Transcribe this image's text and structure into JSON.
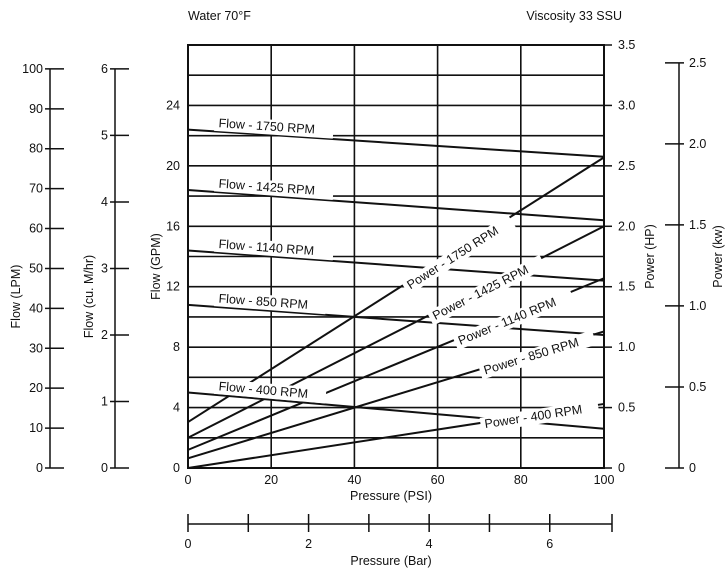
{
  "chart_data": {
    "type": "line",
    "header": {
      "left": "Water 70°F",
      "right": "Viscosity 33 SSU"
    },
    "xaxis_psi": {
      "label": "Pressure (PSI)",
      "range": [
        0,
        100
      ],
      "ticks": [
        "0",
        "20",
        "40",
        "60",
        "80",
        "100"
      ]
    },
    "xaxis_bar": {
      "label": "Pressure (Bar)",
      "range": [
        0,
        6.9
      ],
      "ticks": [
        "0",
        "2",
        "4",
        "6"
      ]
    },
    "y_gpm": {
      "label": "Flow (GPM)",
      "range": [
        0,
        28
      ],
      "ticks": [
        "0",
        "4",
        "8",
        "12",
        "16",
        "20",
        "24"
      ]
    },
    "y_lpm": {
      "label": "Flow (LPM)",
      "range": [
        0,
        100
      ],
      "ticks": [
        "0",
        "10",
        "20",
        "30",
        "40",
        "50",
        "60",
        "70",
        "80",
        "90",
        "100"
      ]
    },
    "y_m3hr": {
      "label": "Flow (cu. M/hr)",
      "range": [
        0,
        6
      ],
      "ticks": [
        "0",
        "1",
        "2",
        "3",
        "4",
        "5",
        "6"
      ]
    },
    "y_hp": {
      "label": "Power (HP)",
      "range": [
        0,
        3.5
      ],
      "ticks": [
        "0",
        "0.5",
        "1.0",
        "1.5",
        "2.0",
        "2.5",
        "3.0",
        "3.5"
      ]
    },
    "y_kw": {
      "label": "Power (kw)",
      "range": [
        0,
        2.5
      ],
      "ticks": [
        "0",
        "0.5",
        "1.0",
        "1.5",
        "2.0",
        "2.5"
      ]
    },
    "flow_series": [
      {
        "name": "Flow - 1750 RPM",
        "x": [
          0,
          100
        ],
        "y": [
          22.4,
          20.6
        ]
      },
      {
        "name": "Flow - 1425 RPM",
        "x": [
          0,
          100
        ],
        "y": [
          18.4,
          16.4
        ]
      },
      {
        "name": "Flow - 1140 RPM",
        "x": [
          0,
          100
        ],
        "y": [
          14.4,
          12.4
        ]
      },
      {
        "name": "Flow - 850 RPM",
        "x": [
          0,
          100
        ],
        "y": [
          10.8,
          8.8
        ]
      },
      {
        "name": "Flow - 400 RPM",
        "x": [
          0,
          100
        ],
        "y": [
          5.0,
          2.6
        ]
      }
    ],
    "power_series": [
      {
        "name": "Power - 1750 RPM",
        "x": [
          0,
          100
        ],
        "y": [
          0.38,
          2.57
        ]
      },
      {
        "name": "Power - 1425 RPM",
        "x": [
          0,
          100
        ],
        "y": [
          0.25,
          2.0
        ]
      },
      {
        "name": "Power - 1140 RPM",
        "x": [
          0,
          100
        ],
        "y": [
          0.15,
          1.57
        ]
      },
      {
        "name": "Power - 850 RPM",
        "x": [
          0,
          100
        ],
        "y": [
          0.08,
          1.13
        ]
      },
      {
        "name": "Power - 400 RPM",
        "x": [
          0,
          100
        ],
        "y": [
          0.0,
          0.53
        ]
      }
    ],
    "grid": true,
    "legend": "none"
  }
}
